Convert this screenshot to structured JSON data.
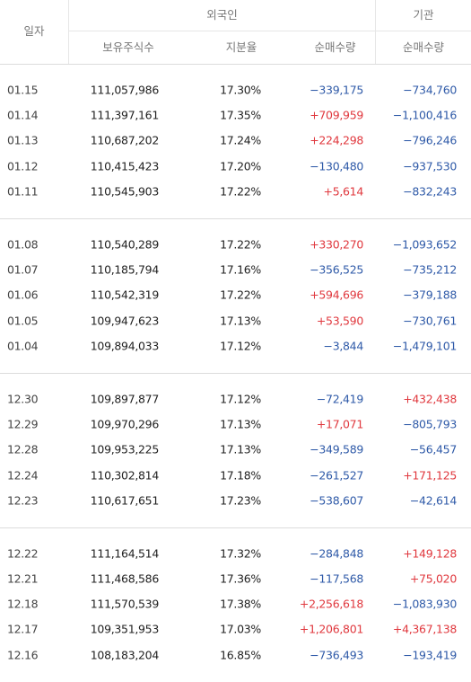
{
  "header": {
    "date_label": "일자",
    "foreign_label": "외국인",
    "institution_label": "기관",
    "holdings_label": "보유주식수",
    "ratio_label": "지분율",
    "foreign_net_label": "순매수량",
    "inst_net_label": "순매수량"
  },
  "colors": {
    "negative": "#2f5aa8",
    "positive": "#e0383e"
  },
  "groups": [
    [
      {
        "date": "01.15",
        "holdings": "111,057,986",
        "ratio": "17.30%",
        "foreign_net": "−339,175",
        "inst_net": "−734,760"
      },
      {
        "date": "01.14",
        "holdings": "111,397,161",
        "ratio": "17.35%",
        "foreign_net": "+709,959",
        "inst_net": "−1,100,416"
      },
      {
        "date": "01.13",
        "holdings": "110,687,202",
        "ratio": "17.24%",
        "foreign_net": "+224,298",
        "inst_net": "−796,246"
      },
      {
        "date": "01.12",
        "holdings": "110,415,423",
        "ratio": "17.20%",
        "foreign_net": "−130,480",
        "inst_net": "−937,530"
      },
      {
        "date": "01.11",
        "holdings": "110,545,903",
        "ratio": "17.22%",
        "foreign_net": "+5,614",
        "inst_net": "−832,243"
      }
    ],
    [
      {
        "date": "01.08",
        "holdings": "110,540,289",
        "ratio": "17.22%",
        "foreign_net": "+330,270",
        "inst_net": "−1,093,652"
      },
      {
        "date": "01.07",
        "holdings": "110,185,794",
        "ratio": "17.16%",
        "foreign_net": "−356,525",
        "inst_net": "−735,212"
      },
      {
        "date": "01.06",
        "holdings": "110,542,319",
        "ratio": "17.22%",
        "foreign_net": "+594,696",
        "inst_net": "−379,188"
      },
      {
        "date": "01.05",
        "holdings": "109,947,623",
        "ratio": "17.13%",
        "foreign_net": "+53,590",
        "inst_net": "−730,761"
      },
      {
        "date": "01.04",
        "holdings": "109,894,033",
        "ratio": "17.12%",
        "foreign_net": "−3,844",
        "inst_net": "−1,479,101"
      }
    ],
    [
      {
        "date": "12.30",
        "holdings": "109,897,877",
        "ratio": "17.12%",
        "foreign_net": "−72,419",
        "inst_net": "+432,438"
      },
      {
        "date": "12.29",
        "holdings": "109,970,296",
        "ratio": "17.13%",
        "foreign_net": "+17,071",
        "inst_net": "−805,793"
      },
      {
        "date": "12.28",
        "holdings": "109,953,225",
        "ratio": "17.13%",
        "foreign_net": "−349,589",
        "inst_net": "−56,457"
      },
      {
        "date": "12.24",
        "holdings": "110,302,814",
        "ratio": "17.18%",
        "foreign_net": "−261,527",
        "inst_net": "+171,125"
      },
      {
        "date": "12.23",
        "holdings": "110,617,651",
        "ratio": "17.23%",
        "foreign_net": "−538,607",
        "inst_net": "−42,614"
      }
    ],
    [
      {
        "date": "12.22",
        "holdings": "111,164,514",
        "ratio": "17.32%",
        "foreign_net": "−284,848",
        "inst_net": "+149,128"
      },
      {
        "date": "12.21",
        "holdings": "111,468,586",
        "ratio": "17.36%",
        "foreign_net": "−117,568",
        "inst_net": "+75,020"
      },
      {
        "date": "12.18",
        "holdings": "111,570,539",
        "ratio": "17.38%",
        "foreign_net": "+2,256,618",
        "inst_net": "−1,083,930"
      },
      {
        "date": "12.17",
        "holdings": "109,351,953",
        "ratio": "17.03%",
        "foreign_net": "+1,206,801",
        "inst_net": "+4,367,138"
      },
      {
        "date": "12.16",
        "holdings": "108,183,204",
        "ratio": "16.85%",
        "foreign_net": "−736,493",
        "inst_net": "−193,419"
      }
    ]
  ]
}
